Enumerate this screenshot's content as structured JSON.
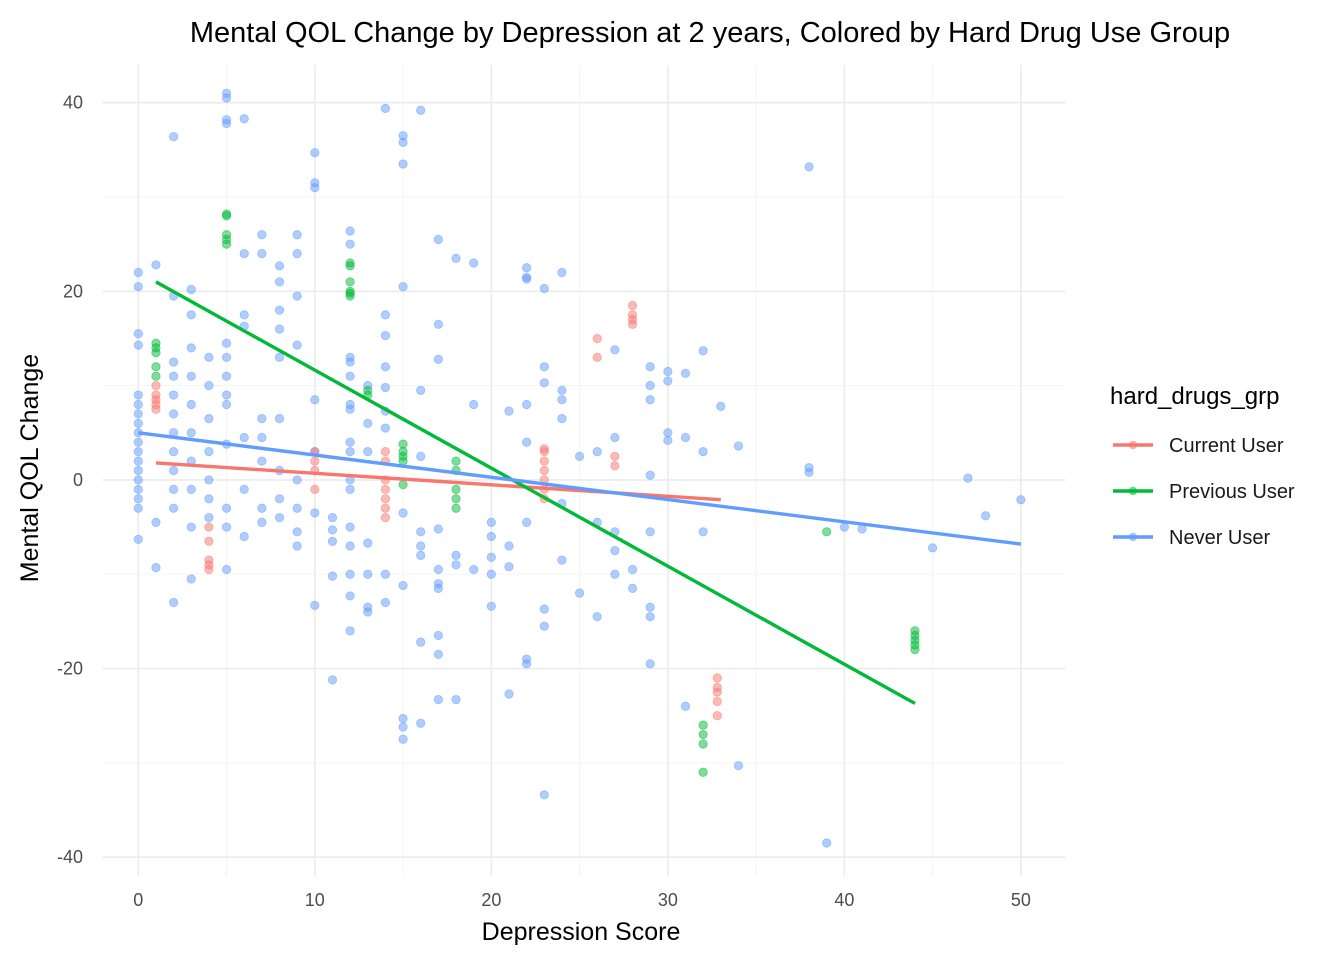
{
  "chart_data": {
    "type": "scatter",
    "title": "Mental QOL Change by Depression at 2 years, Colored by Hard Drug Use Group",
    "xlabel": "Depression Score",
    "ylabel": "Mental QOL Change",
    "xlim": [
      -2,
      52.5
    ],
    "ylim": [
      -42,
      44
    ],
    "xticks": [
      0,
      10,
      20,
      30,
      40,
      50
    ],
    "yticks": [
      -40,
      -20,
      0,
      20,
      40
    ],
    "grid": true,
    "legend": {
      "title": "hard_drugs_grp",
      "placement": "right",
      "entries": [
        "Current User",
        "Previous User",
        "Never User"
      ]
    },
    "series": [
      {
        "name": "Current User",
        "color": "#F8766D",
        "points": [
          [
            1,
            10
          ],
          [
            1,
            9
          ],
          [
            1,
            8.5
          ],
          [
            1,
            8
          ],
          [
            1,
            7.5
          ],
          [
            4,
            -5
          ],
          [
            4,
            -8.5
          ],
          [
            4,
            -9
          ],
          [
            4,
            -9.5
          ],
          [
            4,
            -6.5
          ],
          [
            10,
            3
          ],
          [
            10,
            2
          ],
          [
            10,
            1
          ],
          [
            10,
            -1
          ],
          [
            14,
            3
          ],
          [
            14,
            2
          ],
          [
            14,
            0
          ],
          [
            14,
            -1
          ],
          [
            14,
            -2
          ],
          [
            14,
            -3
          ],
          [
            14,
            -4
          ],
          [
            23,
            3.3
          ],
          [
            23,
            3
          ],
          [
            23,
            2
          ],
          [
            23,
            1
          ],
          [
            23,
            0
          ],
          [
            23,
            -1
          ],
          [
            23,
            -2
          ],
          [
            26,
            15
          ],
          [
            26,
            13
          ],
          [
            27,
            2.5
          ],
          [
            27,
            1.5
          ],
          [
            28,
            18.5
          ],
          [
            28,
            17.5
          ],
          [
            28,
            17
          ],
          [
            28,
            16.5
          ],
          [
            32.8,
            -21
          ],
          [
            32.8,
            -22
          ],
          [
            32.8,
            -22.5
          ],
          [
            32.8,
            -23.5
          ],
          [
            32.8,
            -25
          ]
        ],
        "fit": [
          [
            1,
            1.8
          ],
          [
            33,
            -2.1
          ]
        ]
      },
      {
        "name": "Previous User",
        "color": "#00BA38",
        "points": [
          [
            1,
            14.5
          ],
          [
            1,
            14
          ],
          [
            1,
            13.5
          ],
          [
            1,
            12
          ],
          [
            1,
            11
          ],
          [
            5,
            28.2
          ],
          [
            5,
            28
          ],
          [
            5,
            26
          ],
          [
            5,
            25.5
          ],
          [
            5,
            25
          ],
          [
            12,
            23
          ],
          [
            12,
            22.7
          ],
          [
            12,
            21
          ],
          [
            12,
            20
          ],
          [
            12,
            19.8
          ],
          [
            12,
            19.5
          ],
          [
            13,
            9.5
          ],
          [
            13,
            9
          ],
          [
            15,
            3.8
          ],
          [
            15,
            3
          ],
          [
            15,
            2.5
          ],
          [
            15,
            2
          ],
          [
            15,
            -0.5
          ],
          [
            18,
            2
          ],
          [
            18,
            1
          ],
          [
            18,
            -1
          ],
          [
            18,
            -2
          ],
          [
            18,
            -3
          ],
          [
            32,
            -26
          ],
          [
            32,
            -27
          ],
          [
            32,
            -28
          ],
          [
            32,
            -31
          ],
          [
            39,
            -5.5
          ],
          [
            44,
            -16
          ],
          [
            44,
            -16.5
          ],
          [
            44,
            -17
          ],
          [
            44,
            -17.5
          ],
          [
            44,
            -18
          ]
        ],
        "fit": [
          [
            1,
            21
          ],
          [
            44,
            -23.7
          ]
        ]
      },
      {
        "name": "Never User",
        "color": "#619CFF",
        "points": [
          [
            0,
            22
          ],
          [
            0,
            20.5
          ],
          [
            0,
            15.5
          ],
          [
            0,
            14.3
          ],
          [
            0,
            9
          ],
          [
            0,
            8
          ],
          [
            0,
            7
          ],
          [
            0,
            6
          ],
          [
            0,
            5
          ],
          [
            0,
            4
          ],
          [
            0,
            3
          ],
          [
            0,
            2
          ],
          [
            0,
            1
          ],
          [
            0,
            0
          ],
          [
            0,
            -1
          ],
          [
            0,
            -2
          ],
          [
            0,
            -3
          ],
          [
            0,
            -6.3
          ],
          [
            1,
            22.8
          ],
          [
            1,
            -4.5
          ],
          [
            1,
            -9.3
          ],
          [
            2,
            36.4
          ],
          [
            2,
            19.5
          ],
          [
            2,
            12.5
          ],
          [
            2,
            11
          ],
          [
            2,
            9
          ],
          [
            2,
            7
          ],
          [
            2,
            5
          ],
          [
            2,
            3
          ],
          [
            2,
            1
          ],
          [
            2,
            -1
          ],
          [
            2,
            -3
          ],
          [
            2,
            -13
          ],
          [
            3,
            20.2
          ],
          [
            3,
            17.5
          ],
          [
            3,
            14
          ],
          [
            3,
            11
          ],
          [
            3,
            8
          ],
          [
            3,
            5
          ],
          [
            3,
            2
          ],
          [
            3,
            -1
          ],
          [
            3,
            -5
          ],
          [
            3,
            -10.5
          ],
          [
            4,
            13
          ],
          [
            4,
            10
          ],
          [
            4,
            6.5
          ],
          [
            4,
            3
          ],
          [
            4,
            0
          ],
          [
            4,
            -2
          ],
          [
            4,
            -4
          ],
          [
            5,
            41
          ],
          [
            5,
            40.5
          ],
          [
            5,
            38.2
          ],
          [
            5,
            37.8
          ],
          [
            5,
            14.5
          ],
          [
            5,
            13
          ],
          [
            5,
            11
          ],
          [
            5,
            9
          ],
          [
            5,
            8
          ],
          [
            5,
            3.8
          ],
          [
            5,
            -3
          ],
          [
            5,
            -5
          ],
          [
            5,
            -9.5
          ],
          [
            6,
            38.3
          ],
          [
            6,
            24
          ],
          [
            6,
            17.5
          ],
          [
            6,
            16.3
          ],
          [
            6,
            4.5
          ],
          [
            6,
            -1
          ],
          [
            6,
            -6
          ],
          [
            7,
            26
          ],
          [
            7,
            24
          ],
          [
            7,
            6.5
          ],
          [
            7,
            4.5
          ],
          [
            7,
            2
          ],
          [
            7,
            -3
          ],
          [
            7,
            -4.5
          ],
          [
            8,
            22.7
          ],
          [
            8,
            21
          ],
          [
            8,
            18
          ],
          [
            8,
            16
          ],
          [
            8,
            13
          ],
          [
            8,
            6.5
          ],
          [
            8,
            1
          ],
          [
            8,
            -2
          ],
          [
            8,
            -4
          ],
          [
            9,
            26
          ],
          [
            9,
            24
          ],
          [
            9,
            19.5
          ],
          [
            9,
            14.3
          ],
          [
            9,
            0
          ],
          [
            9,
            -3
          ],
          [
            9,
            -5.5
          ],
          [
            9,
            -7
          ],
          [
            10,
            34.7
          ],
          [
            10,
            31.5
          ],
          [
            10,
            31
          ],
          [
            10,
            8.5
          ],
          [
            10,
            3
          ],
          [
            10,
            -3.5
          ],
          [
            10,
            -13.3
          ],
          [
            11,
            -4
          ],
          [
            11,
            -5.3
          ],
          [
            11,
            -6.5
          ],
          [
            11,
            -10.2
          ],
          [
            11,
            -21.2
          ],
          [
            12,
            26.4
          ],
          [
            12,
            25
          ],
          [
            12,
            13
          ],
          [
            12,
            12.5
          ],
          [
            12,
            11
          ],
          [
            12,
            8
          ],
          [
            12,
            7.5
          ],
          [
            12,
            4
          ],
          [
            12,
            3
          ],
          [
            12,
            0
          ],
          [
            12,
            -1
          ],
          [
            12,
            -5
          ],
          [
            12,
            -7
          ],
          [
            12,
            -10
          ],
          [
            12,
            -12.3
          ],
          [
            12,
            -16
          ],
          [
            13,
            10
          ],
          [
            13,
            6
          ],
          [
            13,
            3
          ],
          [
            13,
            -6.7
          ],
          [
            13,
            -10
          ],
          [
            13,
            -13.5
          ],
          [
            13,
            -14
          ],
          [
            14,
            39.4
          ],
          [
            14,
            17.5
          ],
          [
            14,
            15.3
          ],
          [
            14,
            12
          ],
          [
            14,
            9.8
          ],
          [
            14,
            7.3
          ],
          [
            14,
            5.5
          ],
          [
            14,
            -10
          ],
          [
            14,
            -13
          ],
          [
            15,
            36.5
          ],
          [
            15,
            35.8
          ],
          [
            15,
            33.5
          ],
          [
            15,
            20.5
          ],
          [
            15,
            -3.5
          ],
          [
            15,
            -11.2
          ],
          [
            15,
            -25.3
          ],
          [
            15,
            -26.2
          ],
          [
            15,
            -27.5
          ],
          [
            16,
            39.2
          ],
          [
            16,
            9.5
          ],
          [
            16,
            2.5
          ],
          [
            16,
            -5.5
          ],
          [
            16,
            -7
          ],
          [
            16,
            -8
          ],
          [
            16,
            -17.2
          ],
          [
            16,
            -25.8
          ],
          [
            17,
            25.5
          ],
          [
            17,
            16.5
          ],
          [
            17,
            12.8
          ],
          [
            17,
            -5.2
          ],
          [
            17,
            -9.5
          ],
          [
            17,
            -11
          ],
          [
            17,
            -11.5
          ],
          [
            17,
            -16.5
          ],
          [
            17,
            -18.5
          ],
          [
            17,
            -23.3
          ],
          [
            18,
            23.5
          ],
          [
            18,
            -8
          ],
          [
            18,
            -9
          ],
          [
            18,
            -23.3
          ],
          [
            19,
            23
          ],
          [
            19,
            8
          ],
          [
            19,
            -9.5
          ],
          [
            20,
            -4.5
          ],
          [
            20,
            -6
          ],
          [
            20,
            -8.2
          ],
          [
            20,
            -10
          ],
          [
            20,
            -13.4
          ],
          [
            21,
            7.3
          ],
          [
            21,
            -7
          ],
          [
            21,
            -9.2
          ],
          [
            21,
            -22.7
          ],
          [
            22,
            22.5
          ],
          [
            22,
            21.5
          ],
          [
            22,
            21.3
          ],
          [
            22,
            8
          ],
          [
            22,
            4
          ],
          [
            22,
            -4.5
          ],
          [
            22,
            -19
          ],
          [
            22,
            -19.5
          ],
          [
            23,
            20.3
          ],
          [
            23,
            12
          ],
          [
            23,
            10.3
          ],
          [
            23,
            -13.7
          ],
          [
            23,
            -15.5
          ],
          [
            23,
            -33.4
          ],
          [
            24,
            22
          ],
          [
            24,
            9.5
          ],
          [
            24,
            8.5
          ],
          [
            24,
            6.5
          ],
          [
            24,
            -2.5
          ],
          [
            24,
            -8.5
          ],
          [
            25,
            -12
          ],
          [
            25,
            2.5
          ],
          [
            26,
            3
          ],
          [
            26,
            -4.5
          ],
          [
            26,
            -14.5
          ],
          [
            27,
            13.8
          ],
          [
            27,
            4.5
          ],
          [
            27,
            -10
          ],
          [
            27,
            -7.5
          ],
          [
            27,
            -5.5
          ],
          [
            28,
            -9.5
          ],
          [
            28,
            -11.5
          ],
          [
            29,
            12
          ],
          [
            29,
            10
          ],
          [
            29,
            8.5
          ],
          [
            29,
            0.5
          ],
          [
            29,
            -5.5
          ],
          [
            29,
            -13.5
          ],
          [
            29,
            -14.5
          ],
          [
            29,
            -19.5
          ],
          [
            30,
            11.5
          ],
          [
            30,
            10.5
          ],
          [
            30,
            5
          ],
          [
            30,
            4.2
          ],
          [
            31,
            11.3
          ],
          [
            31,
            4.5
          ],
          [
            31,
            -24
          ],
          [
            32,
            13.7
          ],
          [
            32,
            3
          ],
          [
            32,
            -5.5
          ],
          [
            33,
            7.8
          ],
          [
            34,
            3.6
          ],
          [
            34,
            -30.3
          ],
          [
            38,
            33.2
          ],
          [
            38,
            1.3
          ],
          [
            38,
            0.8
          ],
          [
            40,
            -5
          ],
          [
            41,
            -5.2
          ],
          [
            45,
            -7.2
          ],
          [
            47,
            0.2
          ],
          [
            48,
            -3.8
          ],
          [
            50,
            -2.1
          ],
          [
            39,
            -38.5
          ]
        ],
        "fit": [
          [
            0,
            5
          ],
          [
            50,
            -6.8
          ]
        ]
      }
    ]
  }
}
